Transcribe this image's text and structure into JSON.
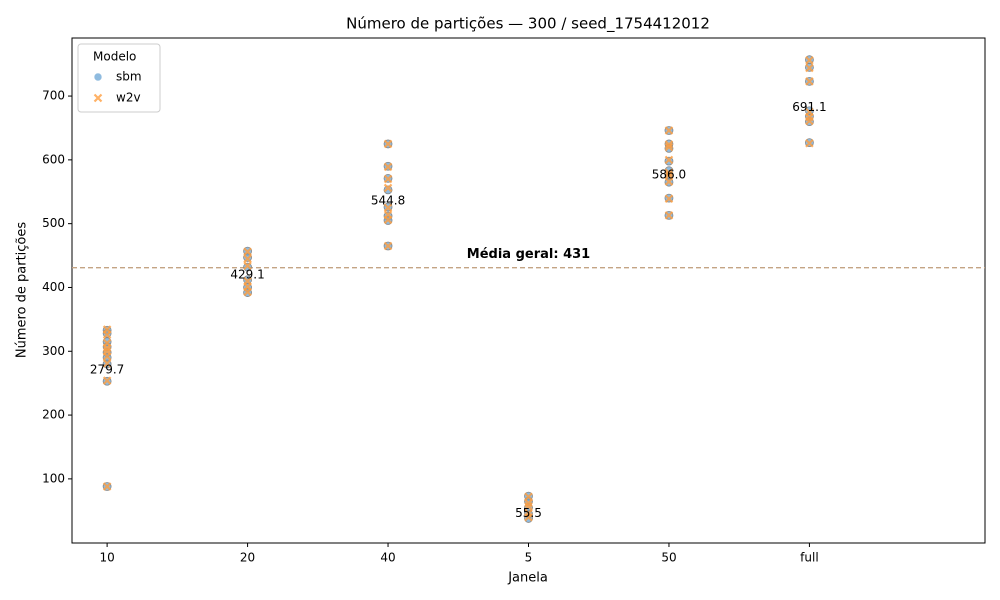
{
  "chart_data": {
    "type": "scatter",
    "title": "Número de partições — 300 / seed_1754412012",
    "x_label": "Janela",
    "y_label": "Número de partições",
    "categories": [
      "10",
      "20",
      "40",
      "5",
      "50",
      "full"
    ],
    "ylim": [
      -0.5,
      791
    ],
    "yticks": [
      100,
      200,
      300,
      400,
      500,
      600,
      700
    ],
    "legend_title": "Modelo",
    "legend": "upper left",
    "series": [
      {
        "name": "sbm",
        "color": "#5f9ed1",
        "marker": "circle",
        "x": [
          "10",
          "10",
          "10",
          "10",
          "10",
          "10",
          "10",
          "10",
          "10",
          "20",
          "20",
          "20",
          "20",
          "20",
          "20",
          "40",
          "40",
          "40",
          "40",
          "40",
          "40",
          "40",
          "40",
          "5",
          "5",
          "5",
          "5",
          "5",
          "50",
          "50",
          "50",
          "50",
          "50",
          "50",
          "50",
          "50",
          "50",
          "full",
          "full",
          "full",
          "full",
          "full",
          "full",
          "full"
        ],
        "values": [
          333,
          328,
          315,
          307,
          298,
          290,
          280,
          253,
          88,
          457,
          447,
          432,
          412,
          400,
          392,
          625,
          590,
          571,
          553,
          526,
          512,
          505,
          465,
          73,
          65,
          55,
          45,
          38,
          646,
          625,
          618,
          598,
          583,
          575,
          565,
          540,
          513,
          757,
          745,
          723,
          677,
          668,
          660,
          627
        ]
      },
      {
        "name": "w2v",
        "color": "#ff9f40",
        "marker": "x",
        "x": [
          "10",
          "10",
          "10",
          "10",
          "10",
          "10",
          "10",
          "10",
          "10",
          "20",
          "20",
          "20",
          "20",
          "20",
          "20",
          "40",
          "40",
          "40",
          "40",
          "40",
          "40",
          "40",
          "40",
          "5",
          "5",
          "5",
          "5",
          "5",
          "50",
          "50",
          "50",
          "50",
          "50",
          "50",
          "50",
          "50",
          "50",
          "full",
          "full",
          "full",
          "full",
          "full",
          "full",
          "full"
        ],
        "values": [
          334,
          326,
          313,
          305,
          300,
          292,
          281,
          254,
          88,
          456,
          445,
          434,
          410,
          401,
          393,
          625,
          589,
          570,
          556,
          525,
          514,
          506,
          465,
          72,
          62,
          57,
          46,
          40,
          646,
          624,
          620,
          600,
          580,
          576,
          566,
          539,
          513,
          756,
          744,
          723,
          675,
          667,
          661,
          626
        ]
      }
    ],
    "annotations": [
      {
        "x": "10",
        "value": 279.7,
        "label": "279.7"
      },
      {
        "x": "20",
        "value": 429.1,
        "label": "429.1"
      },
      {
        "x": "40",
        "value": 544.8,
        "label": "544.8"
      },
      {
        "x": "5",
        "value": 55.5,
        "label": "55.5"
      },
      {
        "x": "50",
        "value": 586.0,
        "label": "586.0"
      },
      {
        "x": "full",
        "value": 691.1,
        "label": "691.1"
      }
    ],
    "hline": {
      "value": 431,
      "label": "Média geral: 431",
      "color": "#c4a484"
    }
  }
}
